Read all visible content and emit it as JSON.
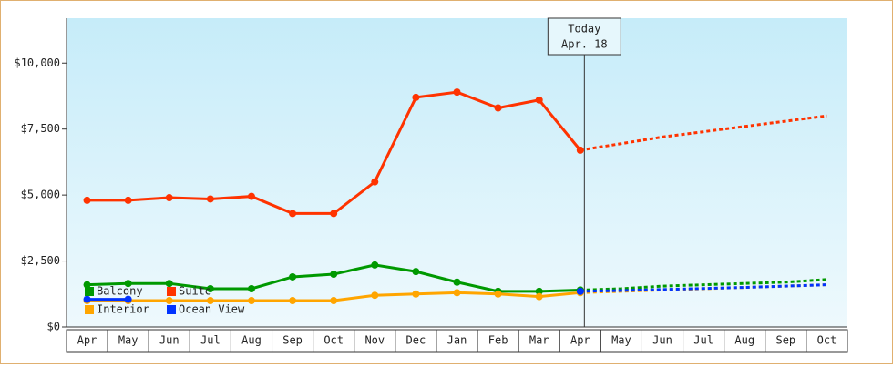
{
  "chart_data": {
    "type": "line",
    "categories": [
      "Apr",
      "May",
      "Jun",
      "Jul",
      "Aug",
      "Sep",
      "Oct",
      "Nov",
      "Dec",
      "Jan",
      "Feb",
      "Mar",
      "Apr",
      "May",
      "Jun",
      "Jul",
      "Aug",
      "Sep",
      "Oct"
    ],
    "series": [
      {
        "name": "Suite",
        "color": "#ff3300",
        "values": [
          4800,
          4800,
          4900,
          4850,
          4950,
          4300,
          4300,
          5500,
          8700,
          8900,
          8300,
          8600,
          6700,
          null,
          null,
          null,
          null,
          null,
          null
        ],
        "forecast": [
          null,
          null,
          null,
          null,
          null,
          null,
          null,
          null,
          null,
          null,
          null,
          null,
          6700,
          6950,
          7200,
          7400,
          7600,
          7800,
          8000
        ]
      },
      {
        "name": "Balcony",
        "color": "#009900",
        "values": [
          1600,
          1650,
          1650,
          1450,
          1450,
          1900,
          2000,
          2350,
          2100,
          1700,
          1350,
          1350,
          1400,
          null,
          null,
          null,
          null,
          null,
          null
        ],
        "forecast": [
          null,
          null,
          null,
          null,
          null,
          null,
          null,
          null,
          null,
          null,
          null,
          null,
          1400,
          1450,
          1550,
          1600,
          1650,
          1700,
          1800
        ]
      },
      {
        "name": "Interior",
        "color": "#ffa500",
        "values": [
          1000,
          1000,
          1000,
          1000,
          1000,
          1000,
          1000,
          1200,
          1250,
          1300,
          1250,
          1150,
          1300,
          null,
          null,
          null,
          null,
          null,
          null
        ],
        "forecast": [
          null,
          null,
          null,
          null,
          null,
          null,
          null,
          null,
          null,
          null,
          null,
          null,
          1300,
          1350,
          1400,
          1450,
          1500,
          1550,
          1600
        ]
      },
      {
        "name": "Ocean View",
        "color": "#0033ff",
        "values": [
          1050,
          1050,
          null,
          null,
          null,
          null,
          null,
          null,
          null,
          null,
          null,
          null,
          1350,
          null,
          null,
          null,
          null,
          null,
          null
        ],
        "forecast": [
          null,
          null,
          null,
          null,
          null,
          null,
          null,
          null,
          null,
          null,
          null,
          null,
          1350,
          1380,
          1420,
          1460,
          1500,
          1550,
          1600
        ]
      }
    ],
    "ylim": [
      0,
      11700
    ],
    "yticks": [
      {
        "value": 0,
        "label": "$0"
      },
      {
        "value": 2500,
        "label": "$2,500"
      },
      {
        "value": 5000,
        "label": "$5,000"
      },
      {
        "value": 7500,
        "label": "$7,500"
      },
      {
        "value": 10000,
        "label": "$10,000"
      }
    ],
    "annotation": [
      "Today",
      "Apr. 18"
    ]
  }
}
